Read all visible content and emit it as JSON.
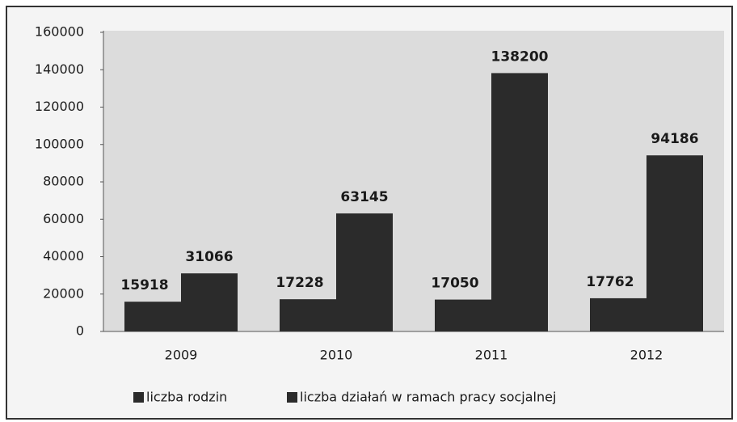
{
  "chart_data": {
    "type": "bar",
    "categories": [
      "2009",
      "2010",
      "2011",
      "2012"
    ],
    "series": [
      {
        "name": "liczba rodzin",
        "color": "#2b2b2b",
        "values": [
          15918,
          17228,
          17050,
          17762
        ]
      },
      {
        "name": "liczba działań w ramach pracy socjalnej",
        "color": "#2b2b2b",
        "values": [
          31066,
          63145,
          138200,
          94186
        ]
      }
    ],
    "ylim": [
      0,
      160000
    ],
    "yticks": [
      0,
      20000,
      40000,
      60000,
      80000,
      100000,
      120000,
      140000,
      160000
    ],
    "grid": false,
    "legend": "bottom"
  }
}
